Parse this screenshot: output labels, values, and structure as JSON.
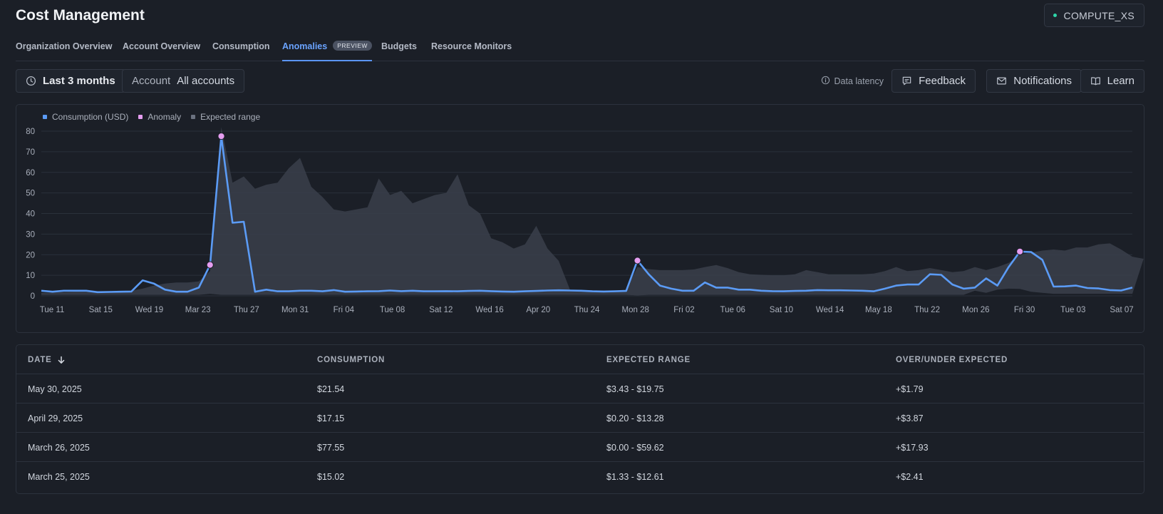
{
  "header": {
    "title": "Cost Management",
    "warehouse": "COMPUTE_XS",
    "status_color": "#2dd4a8"
  },
  "tabs": [
    {
      "label": "Organization Overview",
      "active": false
    },
    {
      "label": "Account Overview",
      "active": false
    },
    {
      "label": "Consumption",
      "active": false
    },
    {
      "label": "Anomalies",
      "active": true,
      "badge": "PREVIEW"
    },
    {
      "label": "Budgets",
      "active": false
    },
    {
      "label": "Resource Monitors",
      "active": false
    }
  ],
  "toolbar": {
    "date_range": "Last 3 months",
    "account_label": "Account",
    "account_value": "All accounts",
    "data_latency": "Data latency",
    "feedback": "Feedback",
    "notifications": "Notifications",
    "learn": "Learn"
  },
  "colors": {
    "consumption": "#5b9bf5",
    "anomaly": "#e59df0",
    "expected": "#3a404b",
    "accent": "#6aa3ff"
  },
  "chart_data": {
    "type": "line",
    "legend": [
      "Consumption (USD)",
      "Anomaly",
      "Expected range"
    ],
    "legend_placement": "top-left",
    "ylim": [
      0,
      80
    ],
    "yticks": [
      0,
      10,
      20,
      30,
      40,
      50,
      60,
      70,
      80
    ],
    "grid": true,
    "xticks": [
      "Tue 11",
      "Sat 15",
      "Wed 19",
      "Mar 23",
      "Thu 27",
      "Mon 31",
      "Fri 04",
      "Tue 08",
      "Sat 12",
      "Wed 16",
      "Apr 20",
      "Thu 24",
      "Mon 28",
      "Fri 02",
      "Tue 06",
      "Sat 10",
      "Wed 14",
      "May 18",
      "Thu 22",
      "Mon 26",
      "Fri 30",
      "Tue 03",
      "Sat 07"
    ],
    "consumption": [
      2.5,
      2.0,
      2.5,
      2.5,
      2.5,
      1.8,
      1.9,
      2.0,
      2.1,
      7.5,
      6.0,
      3.0,
      2.0,
      2.0,
      4.0,
      15.0,
      77.5,
      35.5,
      36.0,
      2.0,
      3.0,
      2.2,
      2.2,
      2.5,
      2.5,
      2.2,
      2.8,
      2.0,
      2.1,
      2.2,
      2.3,
      2.6,
      2.3,
      2.5,
      2.2,
      2.2,
      2.3,
      2.2,
      2.4,
      2.5,
      2.3,
      2.1,
      2.0,
      2.2,
      2.4,
      2.6,
      2.7,
      2.6,
      2.5,
      2.2,
      2.1,
      2.2,
      2.4,
      17.2,
      10.5,
      5.0,
      3.5,
      2.5,
      2.5,
      6.5,
      4.0,
      4.0,
      3.0,
      3.0,
      2.5,
      2.3,
      2.2,
      2.4,
      2.5,
      2.8,
      2.7,
      2.7,
      2.6,
      2.5,
      2.2,
      3.5,
      5.0,
      5.5,
      5.5,
      10.5,
      10.2,
      5.5,
      3.5,
      4.0,
      8.5,
      5.0,
      14.0,
      21.5,
      21.3,
      17.5,
      4.5,
      4.6,
      5.0,
      3.8,
      3.6,
      2.8,
      2.6,
      4.0
    ],
    "expected_upper": [
      1.5,
      1.6,
      1.8,
      2.0,
      2.0,
      2.0,
      2.2,
      2.4,
      2.5,
      3.5,
      5.0,
      6.0,
      6.5,
      6.5,
      7.0,
      12.0,
      82.0,
      55.0,
      58.0,
      52.0,
      54.0,
      55.0,
      62.0,
      67.0,
      53.0,
      48.0,
      42.0,
      41.0,
      42.0,
      43.0,
      57.0,
      49.0,
      51.0,
      45.0,
      47.0,
      49.0,
      50.0,
      59.0,
      44.0,
      40.0,
      28.0,
      26.0,
      23.0,
      25.0,
      34.0,
      23.0,
      17.0,
      3.0,
      2.5,
      2.5,
      2.5,
      2.5,
      3.0,
      14.0,
      13.0,
      12.5,
      12.5,
      12.5,
      12.8,
      14.0,
      15.0,
      13.5,
      11.5,
      10.5,
      10.2,
      10.0,
      10.0,
      10.5,
      12.5,
      11.5,
      10.5,
      10.5,
      10.5,
      10.5,
      10.8,
      12.0,
      14.0,
      12.0,
      12.5,
      13.5,
      12.5,
      11.5,
      12.0,
      14.0,
      12.5,
      14.0,
      16.0,
      20.0,
      21.0,
      22.0,
      22.5,
      22.0,
      23.5,
      23.5,
      25.0,
      25.5,
      22.5,
      19.0,
      18.0
    ],
    "expected_lower": [
      0.5,
      0.5,
      0.5,
      0.5,
      0.5,
      0.5,
      0.5,
      0.5,
      0.5,
      0.5,
      0.5,
      0.5,
      0.5,
      0.5,
      0.5,
      1.0,
      0.5,
      0.5,
      0.5,
      0.5,
      0.5,
      0.5,
      0.5,
      0.5,
      0.5,
      0.5,
      0.5,
      0.5,
      0.5,
      0.5,
      0.5,
      0.5,
      0.5,
      0.5,
      0.5,
      0.5,
      0.5,
      0.5,
      0.5,
      0.5,
      0.5,
      0.5,
      0.5,
      0.5,
      0.5,
      0.5,
      0.5,
      0.5,
      0.5,
      0.5,
      0.5,
      0.5,
      0.5,
      0.2,
      0.5,
      0.5,
      0.5,
      0.5,
      0.5,
      0.5,
      0.5,
      0.5,
      0.5,
      0.5,
      0.5,
      0.5,
      0.5,
      0.5,
      0.5,
      0.5,
      0.5,
      0.5,
      0.5,
      0.5,
      0.5,
      0.5,
      0.5,
      0.5,
      0.5,
      0.5,
      0.5,
      0.5,
      0.5,
      2.5,
      1.5,
      3.0,
      3.5,
      3.4,
      2.0,
      1.5,
      1.0,
      1.0,
      1.0,
      1.0,
      1.0,
      1.0,
      1.0,
      1.0
    ],
    "anomalies": [
      {
        "date": "March 25, 2025",
        "value": 15.02
      },
      {
        "date": "March 26, 2025",
        "value": 77.55
      },
      {
        "date": "April 29, 2025",
        "value": 17.15
      },
      {
        "date": "May 30, 2025",
        "value": 21.54
      }
    ]
  },
  "table": {
    "columns": [
      "DATE",
      "CONSUMPTION",
      "EXPECTED RANGE",
      "OVER/UNDER EXPECTED"
    ],
    "rows": [
      [
        "May 30, 2025",
        "$21.54",
        "$3.43 - $19.75",
        "+$1.79"
      ],
      [
        "April 29, 2025",
        "$17.15",
        "$0.20 - $13.28",
        "+$3.87"
      ],
      [
        "March 26, 2025",
        "$77.55",
        "$0.00 - $59.62",
        "+$17.93"
      ],
      [
        "March 25, 2025",
        "$15.02",
        "$1.33 - $12.61",
        "+$2.41"
      ]
    ]
  }
}
